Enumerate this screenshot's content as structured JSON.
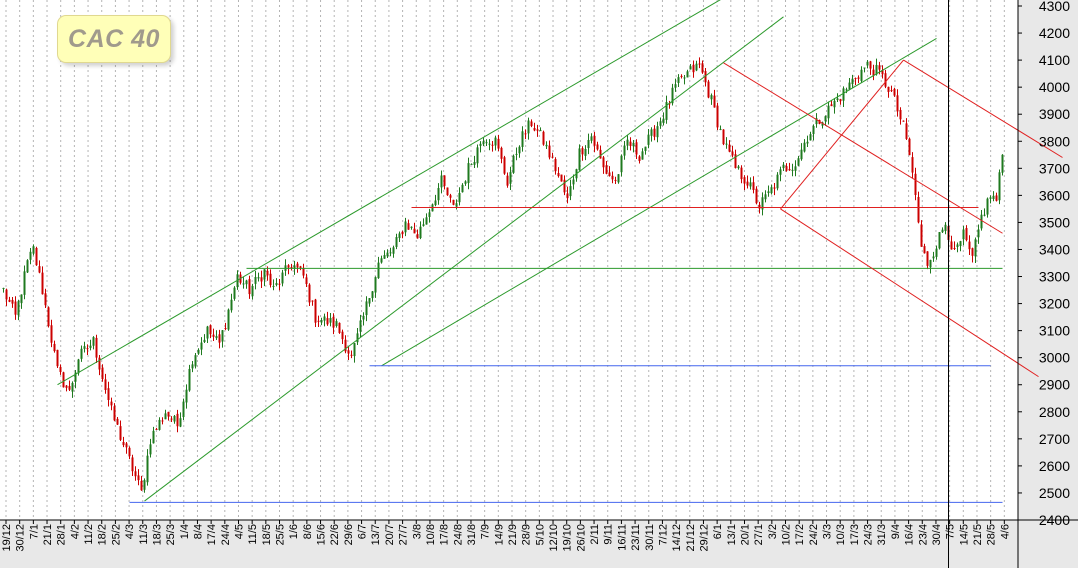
{
  "chart_data": {
    "type": "candlestick",
    "title": "CAC 40",
    "y_axis": {
      "ticks": [
        2400,
        2500,
        2600,
        2700,
        2800,
        2900,
        3000,
        3100,
        3200,
        3300,
        3400,
        3500,
        3600,
        3700,
        3800,
        3900,
        4000,
        4100,
        4200,
        4300
      ],
      "ylim": [
        2400,
        4300
      ],
      "position": "right"
    },
    "x_axis": {
      "tick_labels": [
        "19/12",
        "30/12",
        "7/1",
        "21/1",
        "28/1",
        "4/2",
        "11/2",
        "18/2",
        "25/2",
        "4/3",
        "11/3",
        "18/3",
        "25/3",
        "1/4",
        "8/4",
        "17/4",
        "24/4",
        "4/5",
        "11/5",
        "18/5",
        "25/5",
        "1/6",
        "8/6",
        "15/6",
        "22/6",
        "29/6",
        "6/7",
        "13/7",
        "20/7",
        "27/7",
        "3/8",
        "10/8",
        "17/8",
        "24/8",
        "31/8",
        "7/9",
        "14/9",
        "21/9",
        "28/9",
        "5/10",
        "12/10",
        "19/10",
        "26/10",
        "2/11",
        "9/11",
        "16/11",
        "23/11",
        "30/11",
        "7/12",
        "14/12",
        "21/12",
        "29/12",
        "6/1",
        "13/1",
        "20/1",
        "27/1",
        "3/2",
        "10/2",
        "17/2",
        "24/2",
        "3/3",
        "10/3",
        "17/3",
        "24/3",
        "31/3",
        "9/4",
        "16/4",
        "23/4",
        "30/4",
        "7/5",
        "14/5",
        "21/5",
        "28/5",
        "4/6"
      ]
    },
    "colors": {
      "up": "#1f7a1f",
      "down": "#cc0000",
      "grid": "#b4b4b4",
      "axis_bg": "#e8e8e8"
    },
    "grid": true,
    "anchors": [
      {
        "i": 0,
        "close": 3250
      },
      {
        "i": 4,
        "close": 3150
      },
      {
        "i": 8,
        "close": 3350
      },
      {
        "i": 10,
        "close": 3400
      },
      {
        "i": 13,
        "close": 3250
      },
      {
        "i": 18,
        "close": 2950
      },
      {
        "i": 22,
        "close": 2870
      },
      {
        "i": 25,
        "close": 3000
      },
      {
        "i": 30,
        "close": 3060
      },
      {
        "i": 36,
        "close": 2800
      },
      {
        "i": 40,
        "close": 2680
      },
      {
        "i": 46,
        "close": 2500
      },
      {
        "i": 49,
        "close": 2700
      },
      {
        "i": 54,
        "close": 2800
      },
      {
        "i": 58,
        "close": 2750
      },
      {
        "i": 63,
        "close": 3000
      },
      {
        "i": 68,
        "close": 3100
      },
      {
        "i": 72,
        "close": 3050
      },
      {
        "i": 78,
        "close": 3300
      },
      {
        "i": 82,
        "close": 3250
      },
      {
        "i": 87,
        "close": 3320
      },
      {
        "i": 90,
        "close": 3250
      },
      {
        "i": 96,
        "close": 3350
      },
      {
        "i": 100,
        "close": 3300
      },
      {
        "i": 104,
        "close": 3150
      },
      {
        "i": 111,
        "close": 3120
      },
      {
        "i": 116,
        "close": 3000
      },
      {
        "i": 120,
        "close": 3150
      },
      {
        "i": 125,
        "close": 3350
      },
      {
        "i": 130,
        "close": 3400
      },
      {
        "i": 134,
        "close": 3500
      },
      {
        "i": 138,
        "close": 3450
      },
      {
        "i": 142,
        "close": 3550
      },
      {
        "i": 146,
        "close": 3650
      },
      {
        "i": 150,
        "close": 3550
      },
      {
        "i": 155,
        "close": 3700
      },
      {
        "i": 160,
        "close": 3820
      },
      {
        "i": 164,
        "close": 3800
      },
      {
        "i": 168,
        "close": 3650
      },
      {
        "i": 172,
        "close": 3800
      },
      {
        "i": 176,
        "close": 3870
      },
      {
        "i": 180,
        "close": 3800
      },
      {
        "i": 184,
        "close": 3700
      },
      {
        "i": 188,
        "close": 3580
      },
      {
        "i": 192,
        "close": 3760
      },
      {
        "i": 196,
        "close": 3820
      },
      {
        "i": 200,
        "close": 3700
      },
      {
        "i": 204,
        "close": 3650
      },
      {
        "i": 208,
        "close": 3800
      },
      {
        "i": 212,
        "close": 3750
      },
      {
        "i": 216,
        "close": 3820
      },
      {
        "i": 220,
        "close": 3900
      },
      {
        "i": 224,
        "close": 4000
      },
      {
        "i": 228,
        "close": 4050
      },
      {
        "i": 232,
        "close": 4080
      },
      {
        "i": 236,
        "close": 3950
      },
      {
        "i": 240,
        "close": 3800
      },
      {
        "i": 244,
        "close": 3700
      },
      {
        "i": 248,
        "close": 3650
      },
      {
        "i": 252,
        "close": 3560
      },
      {
        "i": 256,
        "close": 3620
      },
      {
        "i": 260,
        "close": 3700
      },
      {
        "i": 264,
        "close": 3720
      },
      {
        "i": 268,
        "close": 3820
      },
      {
        "i": 272,
        "close": 3880
      },
      {
        "i": 276,
        "close": 3930
      },
      {
        "i": 280,
        "close": 3980
      },
      {
        "i": 284,
        "close": 4040
      },
      {
        "i": 288,
        "close": 4080
      },
      {
        "i": 292,
        "close": 4050
      },
      {
        "i": 296,
        "close": 3980
      },
      {
        "i": 300,
        "close": 3850
      },
      {
        "i": 302,
        "close": 3750
      },
      {
        "i": 304,
        "close": 3600
      },
      {
        "i": 306,
        "close": 3400
      },
      {
        "i": 308,
        "close": 3350
      },
      {
        "i": 311,
        "close": 3420
      },
      {
        "i": 314,
        "close": 3500
      },
      {
        "i": 317,
        "close": 3380
      },
      {
        "i": 320,
        "close": 3450
      },
      {
        "i": 323,
        "close": 3360
      },
      {
        "i": 326,
        "close": 3520
      },
      {
        "i": 329,
        "close": 3600
      },
      {
        "i": 331,
        "close": 3580
      },
      {
        "i": 333,
        "close": 3750
      }
    ],
    "lines": [
      {
        "kind": "trend",
        "color": "green",
        "points": [
          [
            47,
            2470
          ],
          [
            260,
            4260
          ]
        ]
      },
      {
        "kind": "trend",
        "color": "green",
        "points": [
          [
            18,
            2900
          ],
          [
            240,
            4330
          ]
        ]
      },
      {
        "kind": "trend",
        "color": "green",
        "points": [
          [
            126,
            2970
          ],
          [
            311,
            4180
          ]
        ]
      },
      {
        "kind": "support",
        "color": "green",
        "points": [
          [
            81,
            3330
          ],
          [
            333,
            3330
          ]
        ]
      },
      {
        "kind": "support",
        "color": "red",
        "points": [
          [
            136,
            3555
          ],
          [
            325,
            3555
          ]
        ]
      },
      {
        "kind": "trend",
        "color": "red",
        "points": [
          [
            259,
            3550
          ],
          [
            300,
            4100
          ]
        ]
      },
      {
        "kind": "trend",
        "color": "red",
        "points": [
          [
            240,
            4090
          ],
          [
            333,
            3460
          ]
        ]
      },
      {
        "kind": "trend",
        "color": "red",
        "points": [
          [
            259,
            3550
          ],
          [
            345,
            2930
          ]
        ]
      },
      {
        "kind": "trend",
        "color": "red",
        "points": [
          [
            300,
            4100
          ],
          [
            353,
            3740
          ]
        ]
      },
      {
        "kind": "support",
        "color": "blue",
        "points": [
          [
            122,
            2970
          ],
          [
            329,
            2970
          ]
        ]
      },
      {
        "kind": "support",
        "color": "blue",
        "points": [
          [
            42,
            2465
          ],
          [
            333,
            2465
          ]
        ]
      }
    ],
    "marker": {
      "kind": "vertical",
      "index": 315,
      "color": "black"
    }
  }
}
